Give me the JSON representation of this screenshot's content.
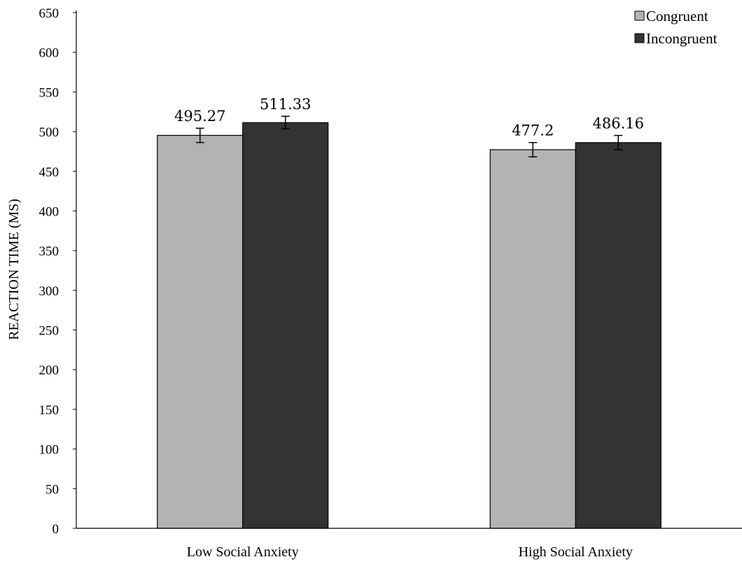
{
  "chart_data": {
    "type": "bar",
    "title": "",
    "xlabel": "",
    "ylabel": "REACTION TIME (MS)",
    "ylim": [
      0,
      650
    ],
    "ytick_step": 50,
    "categories": [
      "Low Social Anxiety",
      "High Social Anxiety"
    ],
    "series": [
      {
        "name": "Congruent",
        "values": [
          495.27,
          477.2
        ],
        "errors": [
          9,
          9
        ],
        "color": "#b3b3b3"
      },
      {
        "name": "Incongruent",
        "values": [
          511.33,
          486.16
        ],
        "errors": [
          8,
          9
        ],
        "color": "#333333"
      }
    ],
    "data_labels": [
      [
        "495.27",
        "477.2"
      ],
      [
        "511.33",
        "486.16"
      ]
    ],
    "legend": "top-right",
    "grid": false
  }
}
